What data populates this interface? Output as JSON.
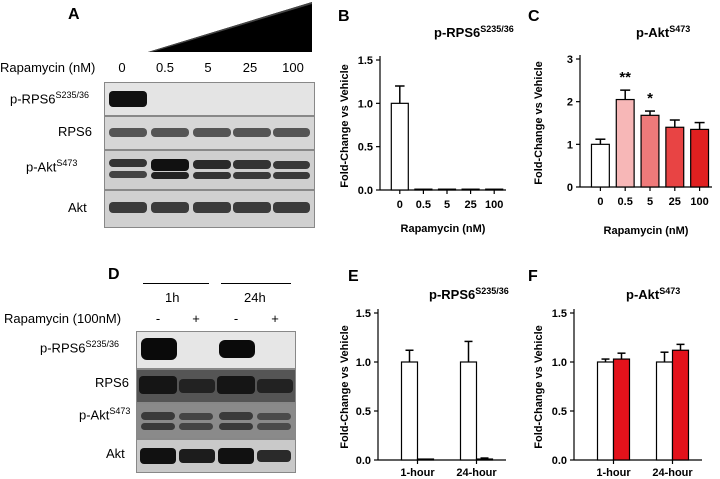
{
  "panel_A": {
    "letter": "A",
    "treatment_label": "Rapamycin (nM)",
    "concentrations": [
      "0",
      "0.5",
      "5",
      "25",
      "100"
    ],
    "blots": [
      {
        "name": "p-RPS6",
        "sup": "S235/36"
      },
      {
        "name": "RPS6",
        "sup": ""
      },
      {
        "name": "p-Akt",
        "sup": "S473"
      },
      {
        "name": "Akt",
        "sup": ""
      }
    ]
  },
  "panel_D": {
    "letter": "D",
    "timepoints": [
      "1h",
      "24h"
    ],
    "treatment_label": "Rapamycin (100nM)",
    "signs": [
      "-",
      "+",
      "-",
      "+"
    ],
    "blots": [
      {
        "name": "p-RPS6",
        "sup": "S235/36"
      },
      {
        "name": "RPS6",
        "sup": ""
      },
      {
        "name": "p-Akt",
        "sup": "S473"
      },
      {
        "name": "Akt",
        "sup": ""
      }
    ]
  },
  "chart_data": [
    {
      "id": "B",
      "letter": "B",
      "type": "bar",
      "title": "p-RPS6",
      "title_sup": "S235/36",
      "xlabel": "Rapamycin (nM)",
      "ylabel": "Fold-Change vs Vehicle",
      "categories": [
        "0",
        "0.5",
        "5",
        "25",
        "100"
      ],
      "values": [
        1.0,
        0.01,
        0.01,
        0.01,
        0.01
      ],
      "errors": [
        0.2,
        0.0,
        0.0,
        0.0,
        0.0
      ],
      "ylim": [
        0,
        1.5
      ],
      "yticks": [
        "0.0",
        "0.5",
        "1.0",
        "1.5"
      ],
      "colors": [
        "#ffffff",
        "#ffffff",
        "#ffffff",
        "#ffffff",
        "#ffffff"
      ]
    },
    {
      "id": "C",
      "letter": "C",
      "type": "bar",
      "title": "p-Akt",
      "title_sup": "S473",
      "xlabel": "Rapamycin (nM)",
      "ylabel": "Fold-Change vs Vehicle",
      "categories": [
        "0",
        "0.5",
        "5",
        "25",
        "100"
      ],
      "values": [
        1.0,
        2.05,
        1.68,
        1.4,
        1.35
      ],
      "errors": [
        0.12,
        0.22,
        0.1,
        0.17,
        0.16
      ],
      "annotations": [
        "",
        "**",
        "*",
        "",
        ""
      ],
      "ylim": [
        0,
        3
      ],
      "yticks": [
        "0",
        "1",
        "2",
        "3"
      ],
      "colors": [
        "#ffffff",
        "#f7b7b7",
        "#ef7a7a",
        "#e84444",
        "#e02020"
      ]
    },
    {
      "id": "E",
      "letter": "E",
      "type": "bar",
      "title": "p-RPS6",
      "title_sup": "S235/36",
      "xlabel": "",
      "ylabel": "Fold-Change vs Vehicle",
      "categories": [
        "1-hour",
        "24-hour"
      ],
      "series": [
        {
          "values": [
            1.0,
            1.0
          ],
          "errors": [
            0.12,
            0.21
          ],
          "color": "#ffffff"
        },
        {
          "values": [
            0.01,
            0.01
          ],
          "errors": [
            0.0,
            0.01
          ],
          "color": "#ffffff"
        }
      ],
      "ylim": [
        0,
        1.5
      ],
      "yticks": [
        "0.0",
        "0.5",
        "1.0",
        "1.5"
      ]
    },
    {
      "id": "F",
      "letter": "F",
      "type": "bar",
      "title": "p-Akt",
      "title_sup": "S473",
      "xlabel": "",
      "ylabel": "Fold-Change vs Vehicle",
      "categories": [
        "1-hour",
        "24-hour"
      ],
      "series": [
        {
          "values": [
            1.0,
            1.0
          ],
          "errors": [
            0.03,
            0.1
          ],
          "color": "#ffffff"
        },
        {
          "values": [
            1.03,
            1.12
          ],
          "errors": [
            0.06,
            0.06
          ],
          "color": "#e3121b"
        }
      ],
      "ylim": [
        0,
        1.5
      ],
      "yticks": [
        "0.0",
        "0.5",
        "1.0",
        "1.5"
      ]
    }
  ]
}
